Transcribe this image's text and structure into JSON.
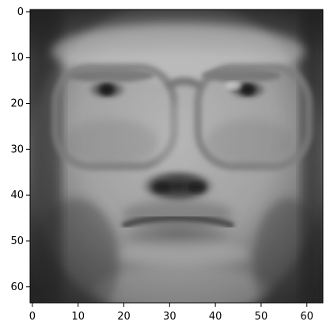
{
  "image_panel": {
    "description_color_map": "gray",
    "x_ticks": [
      "0",
      "10",
      "20",
      "30",
      "40",
      "50",
      "60"
    ],
    "y_ticks": [
      "0",
      "10",
      "20",
      "30",
      "40",
      "50",
      "60"
    ],
    "x_range": [
      -0.5,
      63.5
    ],
    "y_range": [
      -0.5,
      63.5
    ],
    "y_axis_inverted": true
  },
  "colors": {
    "axis": "#000000",
    "background": "#ffffff"
  }
}
